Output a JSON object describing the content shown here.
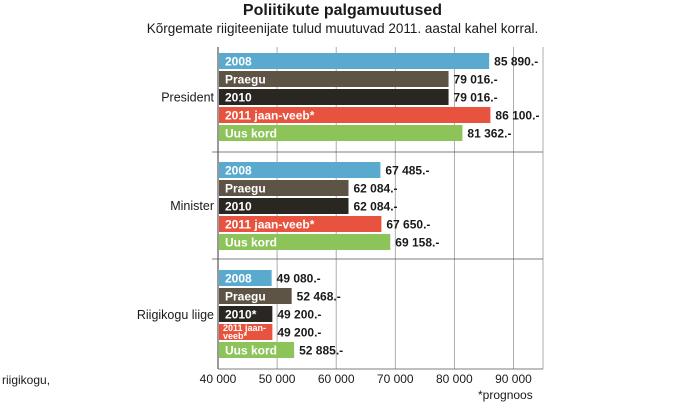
{
  "chart_data": {
    "type": "bar",
    "orientation": "horizontal",
    "title": "Poliitikute palgamuutused",
    "subtitle": "Kõrgemate riigiteenijate tulud muutuvad 2011. aastal kahel korral.",
    "xlim": [
      40000,
      95000
    ],
    "xticks": [
      40000,
      50000,
      60000,
      70000,
      80000,
      90000
    ],
    "xtick_labels": [
      "40 000",
      "50 000",
      "60 000",
      "70 000",
      "80 000",
      "90 000"
    ],
    "grid": true,
    "colors": {
      "2008": "#5aaad0",
      "Praegu": "#5e5446",
      "2010": "#2a2621",
      "2011 jaan-veeb": "#e8533f",
      "Uus kord": "#8cc45a"
    },
    "groups": [
      {
        "category": "President",
        "bars": [
          {
            "series": "2008",
            "label": "2008",
            "value": 85890,
            "value_label": "85 890.-"
          },
          {
            "series": "Praegu",
            "label": "Praegu",
            "value": 79016,
            "value_label": "79 016.-"
          },
          {
            "series": "2010",
            "label": "2010",
            "value": 79016,
            "value_label": "79 016.-"
          },
          {
            "series": "2011 jaan-veeb",
            "label": "2011 jaan-veeb*",
            "value": 86100,
            "value_label": "86 100.-"
          },
          {
            "series": "Uus kord",
            "label": "Uus kord",
            "value": 81362,
            "value_label": "81 362.-"
          }
        ]
      },
      {
        "category": "Minister",
        "bars": [
          {
            "series": "2008",
            "label": "2008",
            "value": 67485,
            "value_label": "67 485.-"
          },
          {
            "series": "Praegu",
            "label": "Praegu",
            "value": 62084,
            "value_label": "62 084.-"
          },
          {
            "series": "2010",
            "label": "2010",
            "value": 62084,
            "value_label": "62 084.-"
          },
          {
            "series": "2011 jaan-veeb",
            "label": "2011 jaan-veeb*",
            "value": 67650,
            "value_label": "67 650.-"
          },
          {
            "series": "Uus kord",
            "label": "Uus kord",
            "value": 69158,
            "value_label": "69 158.-"
          }
        ]
      },
      {
        "category": "Riigikogu liige",
        "bars": [
          {
            "series": "2008",
            "label": "2008",
            "value": 49080,
            "value_label": "49 080.-"
          },
          {
            "series": "Praegu",
            "label": "Praegu",
            "value": 52468,
            "value_label": "52 468.-"
          },
          {
            "series": "2010",
            "label": "2010*",
            "value": 49200,
            "value_label": "49 200.-"
          },
          {
            "series": "2011 jaan-veeb",
            "label": "2011 jaan-veeb*",
            "value": 49200,
            "value_label": "49 200.-",
            "small_label": true
          },
          {
            "series": "Uus kord",
            "label": "Uus kord",
            "value": 52885,
            "value_label": "52 885.-"
          }
        ]
      }
    ]
  },
  "footnote": "*prognoos",
  "side_text": "riigikogu,"
}
